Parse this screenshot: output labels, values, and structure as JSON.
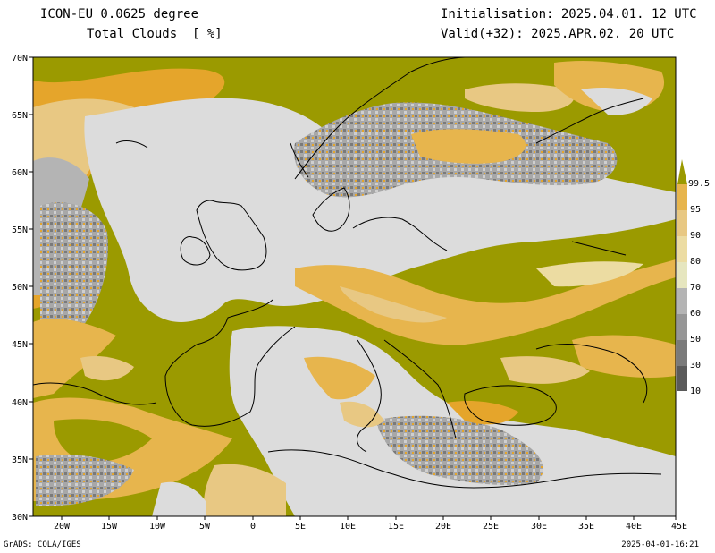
{
  "header": {
    "model": "ICON-EU 0.0625 degree",
    "field": "Total Clouds  [ %]",
    "initialisation": "Initialisation: 2025.04.01. 12 UTC",
    "valid": "Valid(+32): 2025.APR.02. 20 UTC"
  },
  "axes": {
    "lat_labels": [
      "70N",
      "65N",
      "60N",
      "55N",
      "50N",
      "45N",
      "40N",
      "35N",
      "30N"
    ],
    "lon_labels": [
      "20W",
      "15W",
      "10W",
      "5W",
      "0",
      "5E",
      "10E",
      "15E",
      "20E",
      "25E",
      "30E",
      "35E",
      "40E",
      "45E"
    ],
    "lat_range": [
      30,
      70
    ],
    "lon_range": [
      -23,
      45
    ]
  },
  "legend": {
    "labels": [
      "10",
      "30",
      "50",
      "60",
      "70",
      "80",
      "90",
      "95",
      "99.5"
    ],
    "colors": [
      "#5a5a5a",
      "#7a7a7a",
      "#969696",
      "#b4b4b4",
      "#e6e6bf",
      "#ecdca2",
      "#e8c883",
      "#e7b54d",
      "#e5a52b",
      "#9b9a00"
    ]
  },
  "colors": {
    "overcast": "#9b9a00",
    "clear": "#dcdcdc",
    "coast": "#000000"
  },
  "footer": {
    "software": "GrADS: COLA/IGES",
    "timestamp": "2025-04-01-16:21"
  }
}
